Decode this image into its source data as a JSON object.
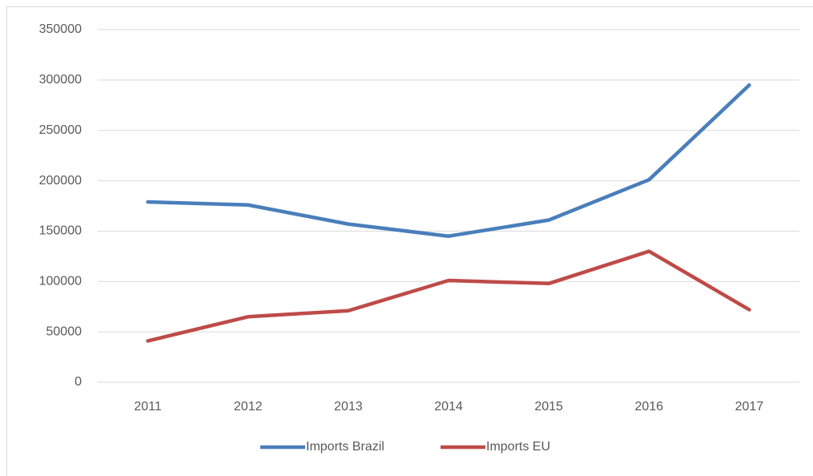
{
  "chart_data": {
    "type": "line",
    "categories": [
      "2011",
      "2012",
      "2013",
      "2014",
      "2015",
      "2016",
      "2017"
    ],
    "series": [
      {
        "name": "Imports Brazil",
        "color": "#4a7ebb",
        "values": [
          179000,
          176000,
          157000,
          145000,
          161000,
          201000,
          295000
        ]
      },
      {
        "name": "Imports EU",
        "color": "#be4b48",
        "values": [
          41000,
          65000,
          71000,
          101000,
          98000,
          130000,
          72000
        ]
      }
    ],
    "ylim": [
      0,
      350000
    ],
    "yticks": [
      0,
      50000,
      100000,
      150000,
      200000,
      250000,
      300000,
      350000
    ],
    "grid": true,
    "legend": "bottom"
  }
}
